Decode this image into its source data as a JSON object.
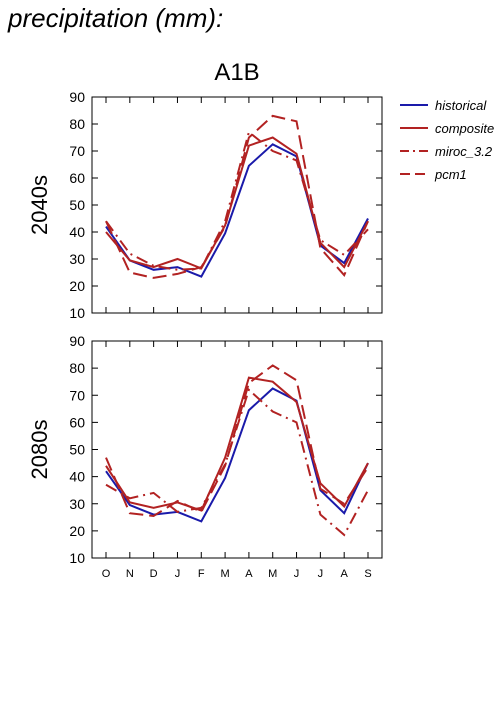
{
  "page": {
    "title": "precipitation (mm):"
  },
  "chart_data": {
    "type": "line",
    "title": "A1B",
    "categories": [
      "O",
      "N",
      "D",
      "J",
      "F",
      "M",
      "A",
      "M",
      "J",
      "J",
      "A",
      "S"
    ],
    "legend_placement": "right",
    "legend": [
      {
        "name": "historical",
        "color": "#1a1aaa",
        "style": "solid"
      },
      {
        "name": "composite",
        "color": "#b22222",
        "style": "solid"
      },
      {
        "name": "miroc_3.2",
        "color": "#b22222",
        "style": "dash-dot"
      },
      {
        "name": "pcm1",
        "color": "#b22222",
        "style": "dashed"
      }
    ],
    "panels": [
      {
        "label": "2040s",
        "ylim": [
          10,
          90
        ],
        "yticks": [
          10,
          20,
          30,
          40,
          50,
          60,
          70,
          80,
          90
        ],
        "series": [
          {
            "name": "historical",
            "values": [
              42,
              29.5,
              26,
              27,
              23.5,
              39.5,
              64.5,
              72.5,
              68,
              35,
              28.5,
              45
            ]
          },
          {
            "name": "composite",
            "values": [
              40,
              29.5,
              27,
              30,
              26.5,
              42.5,
              72,
              75,
              69,
              36,
              27,
              44
            ]
          },
          {
            "name": "miroc_3.2",
            "values": [
              44,
              32,
              27.5,
              26,
              26.5,
              44,
              77,
              70,
              66.5,
              37,
              31.5,
              41
            ]
          },
          {
            "name": "pcm1",
            "values": [
              44,
              25,
              23,
              24.5,
              27,
              42,
              75,
              83,
              81,
              34,
              24,
              44
            ]
          }
        ]
      },
      {
        "label": "2080s",
        "ylim": [
          10,
          90
        ],
        "yticks": [
          10,
          20,
          30,
          40,
          50,
          60,
          70,
          80,
          90
        ],
        "series": [
          {
            "name": "historical",
            "values": [
              42,
              29.5,
              26,
              27,
              23.5,
              39.5,
              64.5,
              72.5,
              68,
              35,
              26.5,
              45
            ]
          },
          {
            "name": "composite",
            "values": [
              44,
              30.5,
              28.5,
              30.5,
              27.5,
              47,
              76.5,
              75,
              67.5,
              37.5,
              29,
              45
            ]
          },
          {
            "name": "miroc_3.2",
            "values": [
              37,
              32,
              34,
              27,
              28.5,
              44.5,
              72,
              64,
              60,
              26,
              18.5,
              35
            ]
          },
          {
            "name": "pcm1",
            "values": [
              47,
              26.5,
              25.5,
              31,
              27,
              44,
              74.5,
              81,
              75.5,
              35.5,
              30,
              43.5
            ]
          }
        ]
      }
    ]
  }
}
